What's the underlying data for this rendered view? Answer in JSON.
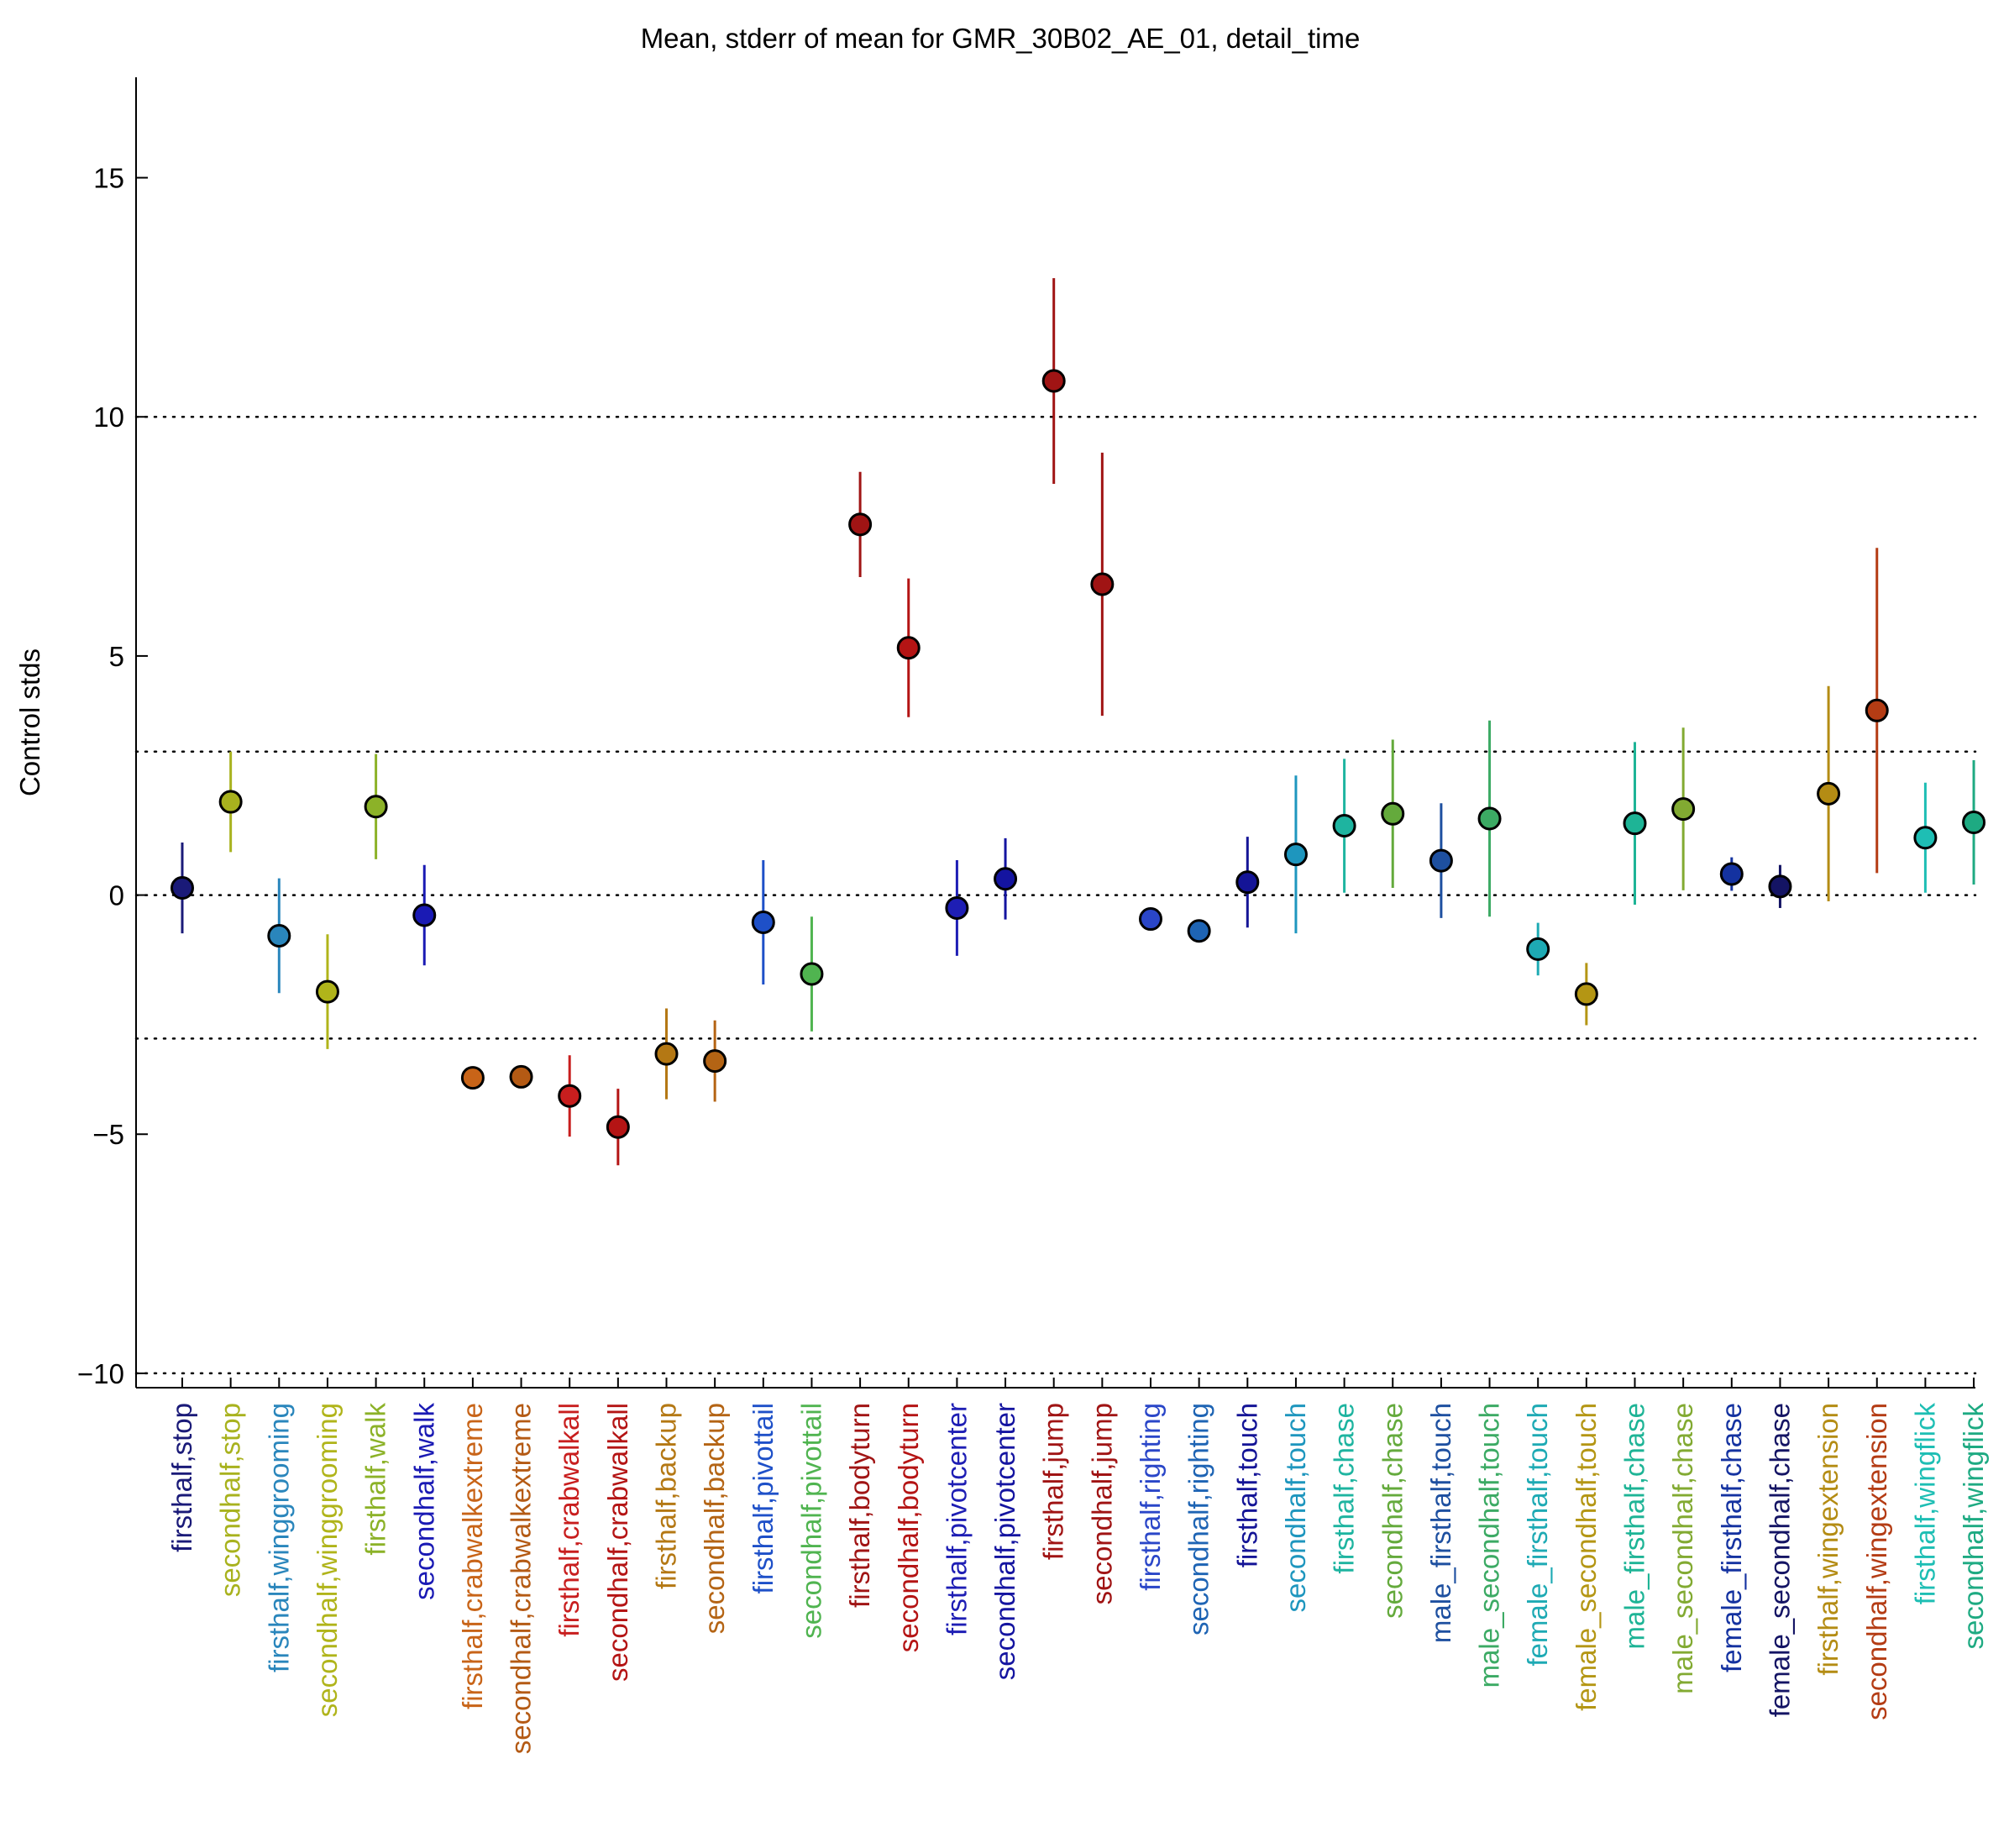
{
  "chart_data": {
    "type": "scatter",
    "title": "Mean, stderr of mean for GMR_30B02_AE_01, detail_time",
    "xlabel": "",
    "ylabel": "Control stds",
    "ylim": [
      -10.3,
      17.1
    ],
    "yticks": [
      -10,
      -5,
      0,
      5,
      10,
      15
    ],
    "reference_lines": [
      -10,
      -3,
      0,
      3,
      10
    ],
    "grid": false,
    "categories": [
      "firsthalf,stop",
      "secondhalf,stop",
      "firsthalf,winggrooming",
      "secondhalf,winggrooming",
      "firsthalf,walk",
      "secondhalf,walk",
      "firsthalf,crabwalkextreme",
      "secondhalf,crabwalkextreme",
      "firsthalf,crabwalkall",
      "secondhalf,crabwalkall",
      "firsthalf,backup",
      "secondhalf,backup",
      "firsthalf,pivottail",
      "secondhalf,pivottail",
      "firsthalf,bodyturn",
      "secondhalf,bodyturn",
      "firsthalf,pivotcenter",
      "secondhalf,pivotcenter",
      "firsthalf,jump",
      "secondhalf,jump",
      "firsthalf,righting",
      "secondhalf,righting",
      "firsthalf,touch",
      "secondhalf,touch",
      "firsthalf,chase",
      "secondhalf,chase",
      "male_firsthalf,touch",
      "male_secondhalf,touch",
      "female_firsthalf,touch",
      "female_secondhalf,touch",
      "male_firsthalf,chase",
      "male_secondhalf,chase",
      "female_firsthalf,chase",
      "female_secondhalf,chase",
      "firsthalf,wingextension",
      "secondhalf,wingextension",
      "firsthalf,wingflick",
      "secondhalf,wingflick"
    ],
    "colors": [
      "#1a1a78",
      "#a8b21e",
      "#2a86bc",
      "#b0b41a",
      "#8cb228",
      "#1a1ab4",
      "#c86418",
      "#b45a14",
      "#c81e1e",
      "#b41414",
      "#b47814",
      "#b46414",
      "#1e50c8",
      "#50b450",
      "#a01414",
      "#b41414",
      "#1e1eb4",
      "#1414a0",
      "#a01414",
      "#a01414",
      "#2a46c8",
      "#1e64b4",
      "#141496",
      "#1e96be",
      "#1eb4a0",
      "#64aa3c",
      "#1e50a0",
      "#3caa64",
      "#1eaab4",
      "#b49614",
      "#1eb496",
      "#82aa32",
      "#1432a0",
      "#141464",
      "#b48c14",
      "#b43c14",
      "#1ebeb4",
      "#1eaa82"
    ],
    "series": [
      {
        "values": [
          0.15,
          1.95,
          -0.85,
          -2.02,
          1.85,
          -0.42,
          -3.82,
          -3.8,
          -4.2,
          -4.85,
          -3.32,
          -3.47,
          -0.57,
          -1.65,
          7.75,
          5.17,
          -0.27,
          0.34,
          10.75,
          6.5,
          -0.5,
          -0.75,
          0.27,
          0.85,
          1.45,
          1.7,
          0.72,
          1.6,
          -1.13,
          -2.07,
          1.5,
          1.8,
          0.44,
          0.18,
          2.12,
          3.86,
          1.2,
          1.52
        ],
        "stderr": [
          0.95,
          1.05,
          1.2,
          1.2,
          1.1,
          1.05,
          0.1,
          0.1,
          0.85,
          0.8,
          0.95,
          0.85,
          1.3,
          1.2,
          1.1,
          1.45,
          1.0,
          0.85,
          2.15,
          2.75,
          0.15,
          0.15,
          0.95,
          1.65,
          1.4,
          1.55,
          1.2,
          2.05,
          0.55,
          0.65,
          1.7,
          1.7,
          0.35,
          0.45,
          2.25,
          3.4,
          1.15,
          1.3
        ]
      }
    ]
  }
}
